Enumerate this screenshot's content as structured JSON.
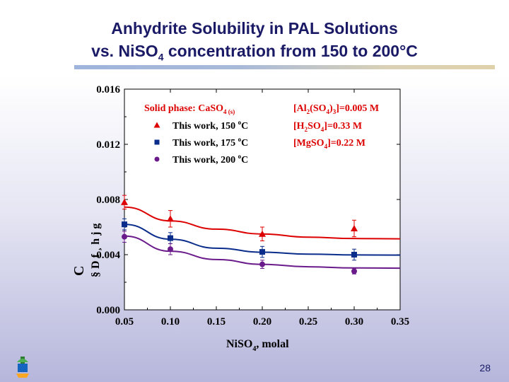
{
  "slide": {
    "title_line1": "Anhydrite Solubility in PAL Solutions",
    "title_line2_prefix": "vs. NiSO",
    "title_line2_sub": "4",
    "title_line2_suffix": " concentration from 150 to 200°C",
    "page_number": "28"
  },
  "chart_data": {
    "type": "scatter",
    "x_range": [
      0.05,
      0.35
    ],
    "y_range": [
      0.0,
      0.016
    ],
    "x_ticks": [
      "0.05",
      "0.10",
      "0.15",
      "0.20",
      "0.25",
      "0.30",
      "0.35"
    ],
    "y_ticks": [
      "0.000",
      "0.004",
      "0.008",
      "0.012",
      "0.016"
    ],
    "xlabel": {
      "main": "NiSO",
      "sub": "4",
      "rest": ", molal"
    },
    "ylabel": {
      "c": "C",
      "glyphs": "§ D f ¸ h j g"
    },
    "legend": {
      "header": {
        "text": "Solid phase: CaSO",
        "sub": "4 (s)"
      },
      "entries": [
        {
          "label": "This work, 150 ",
          "sup": "o",
          "unit": "C",
          "color": "#dd0000",
          "marker": "triangle"
        },
        {
          "label": "This work, 175 ",
          "sup": "o",
          "unit": "C",
          "color": "#0a2d8c",
          "marker": "square"
        },
        {
          "label": "This work, 200 ",
          "sup": "o",
          "unit": "C",
          "color": "#6a1a8a",
          "marker": "circle"
        }
      ]
    },
    "conditions": [
      {
        "parts": [
          "[Al",
          "2",
          "(SO",
          "4",
          ")",
          "3",
          "]=0.005 M"
        ]
      },
      {
        "parts": [
          "[H",
          "2",
          "SO",
          "4",
          "]=0.33 M"
        ]
      },
      {
        "parts": [
          "[MgSO",
          "4",
          "]=0.22 M"
        ]
      }
    ],
    "series": [
      {
        "name": "This work, 150 oC",
        "color": "#dd0000",
        "marker": "triangle",
        "points": [
          [
            0.05,
            0.0078
          ],
          [
            0.1,
            0.0066
          ],
          [
            0.2,
            0.0055
          ],
          [
            0.3,
            0.0059
          ]
        ],
        "errors": [
          0.0005,
          0.0006,
          0.0005,
          0.0006
        ],
        "fit": [
          [
            0.05,
            0.00745
          ],
          [
            0.1,
            0.00645
          ],
          [
            0.15,
            0.00585
          ],
          [
            0.2,
            0.0055
          ],
          [
            0.25,
            0.00527
          ],
          [
            0.3,
            0.00517
          ],
          [
            0.35,
            0.00515
          ]
        ]
      },
      {
        "name": "This work, 175 oC",
        "color": "#0a2d8c",
        "marker": "square",
        "points": [
          [
            0.05,
            0.0062
          ],
          [
            0.1,
            0.0052
          ],
          [
            0.2,
            0.0042
          ],
          [
            0.3,
            0.004
          ]
        ],
        "errors": [
          0.0004,
          0.0004,
          0.0004,
          0.0004
        ],
        "fit": [
          [
            0.05,
            0.0062
          ],
          [
            0.1,
            0.00512
          ],
          [
            0.15,
            0.00447
          ],
          [
            0.2,
            0.00418
          ],
          [
            0.25,
            0.00404
          ],
          [
            0.3,
            0.00398
          ],
          [
            0.35,
            0.00397
          ]
        ]
      },
      {
        "name": "This work, 200 oC",
        "color": "#6a1a8a",
        "marker": "circle",
        "points": [
          [
            0.05,
            0.0053
          ],
          [
            0.1,
            0.0044
          ],
          [
            0.2,
            0.0033
          ],
          [
            0.3,
            0.0028
          ]
        ],
        "errors": [
          0.0004,
          0.0004,
          0.0003,
          0.0002
        ],
        "fit": [
          [
            0.05,
            0.00535
          ],
          [
            0.1,
            0.00425
          ],
          [
            0.15,
            0.00365
          ],
          [
            0.2,
            0.0033
          ],
          [
            0.25,
            0.00312
          ],
          [
            0.3,
            0.00304
          ],
          [
            0.35,
            0.00302
          ]
        ]
      }
    ]
  }
}
